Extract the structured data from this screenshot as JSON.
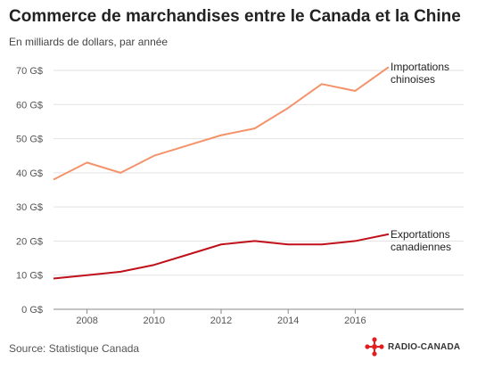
{
  "title": "Commerce de marchandises entre le Canada et la Chine",
  "subtitle": "En milliards de dollars, par année",
  "source": "Source: Statistique Canada",
  "logo_text": "RADIO-CANADA",
  "colors": {
    "imports": "#f4936a",
    "exports": "#c0101a",
    "grid": "#e2e2e2",
    "axis": "#888888",
    "logo": "#e02020"
  },
  "chart_data": {
    "type": "line",
    "x": [
      2007,
      2008,
      2009,
      2010,
      2011,
      2012,
      2013,
      2014,
      2015,
      2016,
      2017
    ],
    "xticks": [
      2008,
      2010,
      2012,
      2014,
      2016
    ],
    "xtick_labels": [
      "2008",
      "2010",
      "2012",
      "2014",
      "2016"
    ],
    "xlim": [
      2007,
      2017
    ],
    "ylim": [
      0,
      70
    ],
    "yticks": [
      0,
      10,
      20,
      30,
      40,
      50,
      60,
      70
    ],
    "ytick_labels": [
      "0 G$",
      "10 G$",
      "20 G$",
      "30 G$",
      "40 G$",
      "50 G$",
      "60 G$",
      "70 G$"
    ],
    "grid": true,
    "series": [
      {
        "name_lines": [
          "Importations",
          "chinoises"
        ],
        "color": "#f4936a",
        "values": [
          38,
          43,
          40,
          45,
          48,
          51,
          53,
          59,
          66,
          64,
          71
        ]
      },
      {
        "name_lines": [
          "Exportations",
          "canadiennes"
        ],
        "color": "#c0101a",
        "values": [
          9,
          10,
          11,
          13,
          16,
          19,
          20,
          19,
          19,
          20,
          22
        ]
      }
    ]
  }
}
